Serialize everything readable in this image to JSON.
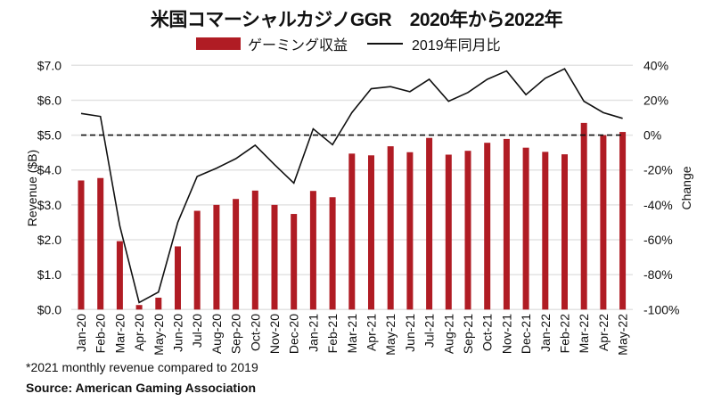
{
  "chart_data": {
    "type": "bar+line",
    "title": "米国コマーシャルカジノGGR　2020年から2022年",
    "legend": {
      "position": "top-center",
      "entries": [
        {
          "label": "ゲーミング収益",
          "kind": "bar",
          "color": "#b01c24"
        },
        {
          "label": "2019年同月比",
          "kind": "line",
          "color": "#111111"
        }
      ]
    },
    "categories": [
      "Jan-20",
      "Feb-20",
      "Mar-20",
      "Apr-20",
      "May-20",
      "Jun-20",
      "Jul-20",
      "Aug-20",
      "Sep-20",
      "Oct-20",
      "Nov-20",
      "Dec-20",
      "Jan-21",
      "Feb-21",
      "Mar-21",
      "Apr-21",
      "May-21",
      "Jun-21",
      "Jul-21",
      "Aug-21",
      "Sep-21",
      "Oct-21",
      "Nov-21",
      "Dec-21",
      "Jan-22",
      "Feb-22",
      "Mar-22",
      "Apr-22",
      "May-22"
    ],
    "series": [
      {
        "name": "ゲーミング収益",
        "type": "bar",
        "axis": "left",
        "color": "#b01c24",
        "values": [
          3.7,
          3.77,
          1.96,
          0.13,
          0.34,
          1.81,
          2.83,
          3.0,
          3.17,
          3.41,
          3.0,
          2.74,
          3.4,
          3.22,
          4.47,
          4.42,
          4.68,
          4.51,
          4.92,
          4.44,
          4.55,
          4.78,
          4.89,
          4.64,
          4.52,
          4.45,
          5.35,
          5.0,
          5.09
        ]
      },
      {
        "name": "2019年同月比",
        "type": "line",
        "axis": "right",
        "color": "#111111",
        "values": [
          12.4,
          10.7,
          -52,
          -96,
          -90,
          -50,
          -23.7,
          -19,
          -13.5,
          -5.8,
          -16.9,
          -27.5,
          3.6,
          -5.5,
          12.9,
          26.6,
          27.8,
          24.9,
          32,
          19.4,
          24.4,
          32,
          36.8,
          23.2,
          32.6,
          38,
          19.4,
          12.9,
          9.6
        ]
      }
    ],
    "y_left": {
      "label": "Revenue ($B)",
      "range": [
        0,
        7
      ],
      "ticks": [
        0,
        1,
        2,
        3,
        4,
        5,
        6,
        7
      ],
      "tick_labels": [
        "$0.0",
        "$1.0",
        "$2.0",
        "$3.0",
        "$4.0",
        "$5.0",
        "$6.0",
        "$7.0"
      ]
    },
    "y_right": {
      "label": "Change",
      "range": [
        -100,
        40
      ],
      "ticks": [
        -100,
        -80,
        -60,
        -40,
        -20,
        0,
        20,
        40
      ],
      "tick_labels": [
        "-100%",
        "-80%",
        "-60%",
        "-40%",
        "-20%",
        "0%",
        "20%",
        "40%"
      ]
    },
    "reference_line": {
      "axis": "right",
      "value": 0,
      "style": "dashed"
    },
    "grid": true,
    "footnote": "*2021 monthly revenue compared to 2019",
    "source": "Source: American Gaming Association"
  }
}
